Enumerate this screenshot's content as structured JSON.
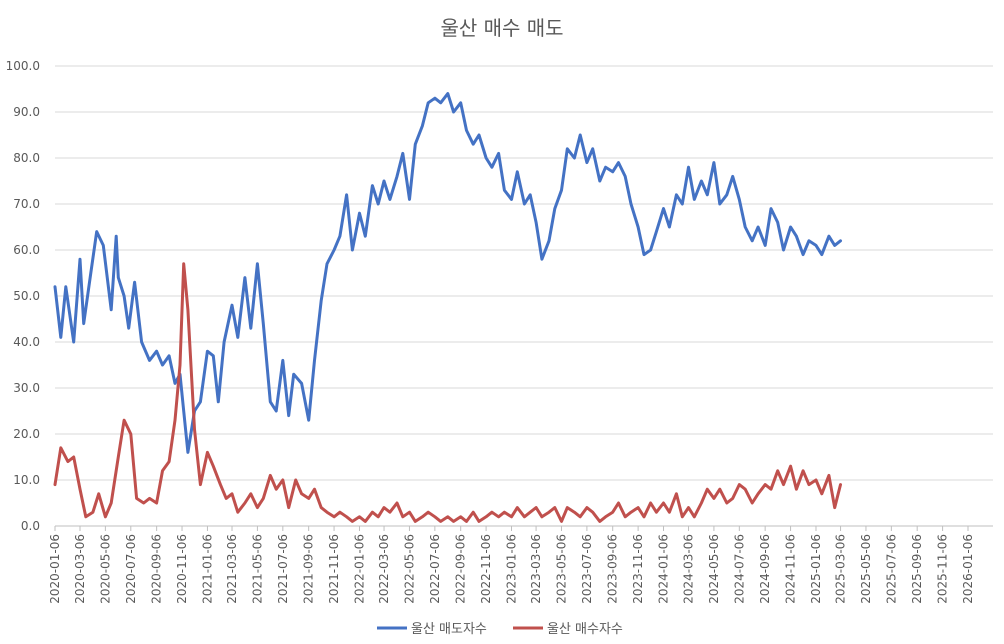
{
  "chart_data": {
    "type": "line",
    "title": "울산 매수 매도",
    "xlabel": "",
    "ylabel": "",
    "ylim": [
      0,
      100
    ],
    "y_ticks": [
      "0.0",
      "10.0",
      "20.0",
      "30.0",
      "40.0",
      "50.0",
      "60.0",
      "70.0",
      "80.0",
      "90.0",
      "100.0"
    ],
    "x_ticks": [
      "2020-01-06",
      "2020-03-06",
      "2020-05-06",
      "2020-07-06",
      "2020-09-06",
      "2020-11-06",
      "2021-01-06",
      "2021-03-06",
      "2021-05-06",
      "2021-07-06",
      "2021-09-06",
      "2021-11-06",
      "2022-01-06",
      "2022-03-06",
      "2022-05-06",
      "2022-07-06",
      "2022-09-06",
      "2022-11-06",
      "2023-01-06",
      "2023-03-06",
      "2023-05-06",
      "2023-07-06",
      "2023-09-06",
      "2023-11-06",
      "2024-01-06",
      "2024-03-06",
      "2024-05-06",
      "2024-07-06",
      "2024-09-06",
      "2024-11-06",
      "2025-01-06",
      "2025-03-06",
      "2025-05-06",
      "2025-07-06",
      "2025-09-06",
      "2025-11-06",
      "2026-01-06"
    ],
    "legend_position": "bottom",
    "grid": true,
    "series": [
      {
        "name": "울산 매도자수",
        "color": "#4472C4",
        "points": [
          [
            "2020-01-06",
            52
          ],
          [
            "2020-01-20",
            41
          ],
          [
            "2020-02-01",
            52
          ],
          [
            "2020-02-20",
            40
          ],
          [
            "2020-03-06",
            58
          ],
          [
            "2020-03-15",
            44
          ],
          [
            "2020-04-01",
            55
          ],
          [
            "2020-04-15",
            64
          ],
          [
            "2020-05-01",
            61
          ],
          [
            "2020-05-20",
            47
          ],
          [
            "2020-06-01",
            63
          ],
          [
            "2020-06-06",
            54
          ],
          [
            "2020-06-20",
            50
          ],
          [
            "2020-07-01",
            43
          ],
          [
            "2020-07-15",
            53
          ],
          [
            "2020-08-01",
            40
          ],
          [
            "2020-08-20",
            36
          ],
          [
            "2020-09-06",
            38
          ],
          [
            "2020-09-20",
            35
          ],
          [
            "2020-10-06",
            37
          ],
          [
            "2020-10-20",
            31
          ],
          [
            "2020-11-01",
            33
          ],
          [
            "2020-11-10",
            25
          ],
          [
            "2020-11-20",
            16
          ],
          [
            "2020-12-06",
            25
          ],
          [
            "2020-12-20",
            27
          ],
          [
            "2021-01-06",
            38
          ],
          [
            "2021-01-20",
            37
          ],
          [
            "2021-02-01",
            27
          ],
          [
            "2021-02-15",
            40
          ],
          [
            "2021-03-06",
            48
          ],
          [
            "2021-03-20",
            41
          ],
          [
            "2021-04-06",
            54
          ],
          [
            "2021-04-20",
            43
          ],
          [
            "2021-05-06",
            57
          ],
          [
            "2021-05-20",
            44
          ],
          [
            "2021-06-06",
            27
          ],
          [
            "2021-06-20",
            25
          ],
          [
            "2021-07-06",
            36
          ],
          [
            "2021-07-20",
            24
          ],
          [
            "2021-08-01",
            33
          ],
          [
            "2021-08-20",
            31
          ],
          [
            "2021-09-06",
            23
          ],
          [
            "2021-09-20",
            36
          ],
          [
            "2021-10-06",
            49
          ],
          [
            "2021-10-20",
            57
          ],
          [
            "2021-11-06",
            60
          ],
          [
            "2021-11-20",
            63
          ],
          [
            "2021-12-06",
            72
          ],
          [
            "2021-12-20",
            60
          ],
          [
            "2022-01-06",
            68
          ],
          [
            "2022-01-20",
            63
          ],
          [
            "2022-02-06",
            74
          ],
          [
            "2022-02-20",
            70
          ],
          [
            "2022-03-06",
            75
          ],
          [
            "2022-03-20",
            71
          ],
          [
            "2022-04-06",
            76
          ],
          [
            "2022-04-20",
            81
          ],
          [
            "2022-05-06",
            71
          ],
          [
            "2022-05-20",
            83
          ],
          [
            "2022-06-06",
            87
          ],
          [
            "2022-06-20",
            92
          ],
          [
            "2022-07-06",
            93
          ],
          [
            "2022-07-20",
            92
          ],
          [
            "2022-08-06",
            94
          ],
          [
            "2022-08-20",
            90
          ],
          [
            "2022-09-06",
            92
          ],
          [
            "2022-09-20",
            86
          ],
          [
            "2022-10-06",
            83
          ],
          [
            "2022-10-20",
            85
          ],
          [
            "2022-11-06",
            80
          ],
          [
            "2022-11-20",
            78
          ],
          [
            "2022-12-06",
            81
          ],
          [
            "2022-12-20",
            73
          ],
          [
            "2023-01-06",
            71
          ],
          [
            "2023-01-20",
            77
          ],
          [
            "2023-02-06",
            70
          ],
          [
            "2023-02-20",
            72
          ],
          [
            "2023-03-06",
            66
          ],
          [
            "2023-03-20",
            58
          ],
          [
            "2023-04-06",
            62
          ],
          [
            "2023-04-20",
            69
          ],
          [
            "2023-05-06",
            73
          ],
          [
            "2023-05-20",
            82
          ],
          [
            "2023-06-06",
            80
          ],
          [
            "2023-06-20",
            85
          ],
          [
            "2023-07-06",
            79
          ],
          [
            "2023-07-20",
            82
          ],
          [
            "2023-08-06",
            75
          ],
          [
            "2023-08-20",
            78
          ],
          [
            "2023-09-06",
            77
          ],
          [
            "2023-09-20",
            79
          ],
          [
            "2023-10-06",
            76
          ],
          [
            "2023-10-20",
            70
          ],
          [
            "2023-11-06",
            65
          ],
          [
            "2023-11-20",
            59
          ],
          [
            "2023-12-06",
            60
          ],
          [
            "2023-12-20",
            64
          ],
          [
            "2024-01-06",
            69
          ],
          [
            "2024-01-20",
            65
          ],
          [
            "2024-02-06",
            72
          ],
          [
            "2024-02-20",
            70
          ],
          [
            "2024-03-06",
            78
          ],
          [
            "2024-03-20",
            71
          ],
          [
            "2024-04-06",
            75
          ],
          [
            "2024-04-20",
            72
          ],
          [
            "2024-05-06",
            79
          ],
          [
            "2024-05-20",
            70
          ],
          [
            "2024-06-06",
            72
          ],
          [
            "2024-06-20",
            76
          ],
          [
            "2024-07-06",
            71
          ],
          [
            "2024-07-20",
            65
          ],
          [
            "2024-08-06",
            62
          ],
          [
            "2024-08-20",
            65
          ],
          [
            "2024-09-06",
            61
          ],
          [
            "2024-09-20",
            69
          ],
          [
            "2024-10-06",
            66
          ],
          [
            "2024-10-20",
            60
          ],
          [
            "2024-11-06",
            65
          ],
          [
            "2024-11-20",
            63
          ],
          [
            "2024-12-06",
            59
          ],
          [
            "2024-12-20",
            62
          ],
          [
            "2025-01-06",
            61
          ],
          [
            "2025-01-20",
            59
          ],
          [
            "2025-02-06",
            63
          ],
          [
            "2025-02-20",
            61
          ],
          [
            "2025-03-06",
            62
          ]
        ]
      },
      {
        "name": "울산 매수자수",
        "color": "#C0504D",
        "points": [
          [
            "2020-01-06",
            9
          ],
          [
            "2020-01-20",
            17
          ],
          [
            "2020-02-06",
            14
          ],
          [
            "2020-02-20",
            15
          ],
          [
            "2020-03-06",
            8
          ],
          [
            "2020-03-20",
            2
          ],
          [
            "2020-04-06",
            3
          ],
          [
            "2020-04-20",
            7
          ],
          [
            "2020-05-06",
            2
          ],
          [
            "2020-05-20",
            5
          ],
          [
            "2020-06-06",
            15
          ],
          [
            "2020-06-20",
            23
          ],
          [
            "2020-07-06",
            20
          ],
          [
            "2020-07-20",
            6
          ],
          [
            "2020-08-06",
            5
          ],
          [
            "2020-08-20",
            6
          ],
          [
            "2020-09-06",
            5
          ],
          [
            "2020-09-20",
            12
          ],
          [
            "2020-10-06",
            14
          ],
          [
            "2020-10-20",
            23
          ],
          [
            "2020-11-01",
            35
          ],
          [
            "2020-11-10",
            57
          ],
          [
            "2020-11-20",
            47
          ],
          [
            "2020-12-06",
            21
          ],
          [
            "2020-12-20",
            9
          ],
          [
            "2021-01-06",
            16
          ],
          [
            "2021-01-20",
            13
          ],
          [
            "2021-02-06",
            9
          ],
          [
            "2021-02-20",
            6
          ],
          [
            "2021-03-06",
            7
          ],
          [
            "2021-03-20",
            3
          ],
          [
            "2021-04-06",
            5
          ],
          [
            "2021-04-20",
            7
          ],
          [
            "2021-05-06",
            4
          ],
          [
            "2021-05-20",
            6
          ],
          [
            "2021-06-06",
            11
          ],
          [
            "2021-06-20",
            8
          ],
          [
            "2021-07-06",
            10
          ],
          [
            "2021-07-20",
            4
          ],
          [
            "2021-08-06",
            10
          ],
          [
            "2021-08-20",
            7
          ],
          [
            "2021-09-06",
            6
          ],
          [
            "2021-09-20",
            8
          ],
          [
            "2021-10-06",
            4
          ],
          [
            "2021-10-20",
            3
          ],
          [
            "2021-11-06",
            2
          ],
          [
            "2021-11-20",
            3
          ],
          [
            "2021-12-06",
            2
          ],
          [
            "2021-12-20",
            1
          ],
          [
            "2022-01-06",
            2
          ],
          [
            "2022-01-20",
            1
          ],
          [
            "2022-02-06",
            3
          ],
          [
            "2022-02-20",
            2
          ],
          [
            "2022-03-06",
            4
          ],
          [
            "2022-03-20",
            3
          ],
          [
            "2022-04-06",
            5
          ],
          [
            "2022-04-20",
            2
          ],
          [
            "2022-05-06",
            3
          ],
          [
            "2022-05-20",
            1
          ],
          [
            "2022-06-06",
            2
          ],
          [
            "2022-06-20",
            3
          ],
          [
            "2022-07-06",
            2
          ],
          [
            "2022-07-20",
            1
          ],
          [
            "2022-08-06",
            2
          ],
          [
            "2022-08-20",
            1
          ],
          [
            "2022-09-06",
            2
          ],
          [
            "2022-09-20",
            1
          ],
          [
            "2022-10-06",
            3
          ],
          [
            "2022-10-20",
            1
          ],
          [
            "2022-11-06",
            2
          ],
          [
            "2022-11-20",
            3
          ],
          [
            "2022-12-06",
            2
          ],
          [
            "2022-12-20",
            3
          ],
          [
            "2023-01-06",
            2
          ],
          [
            "2023-01-20",
            4
          ],
          [
            "2023-02-06",
            2
          ],
          [
            "2023-02-20",
            3
          ],
          [
            "2023-03-06",
            4
          ],
          [
            "2023-03-20",
            2
          ],
          [
            "2023-04-06",
            3
          ],
          [
            "2023-04-20",
            4
          ],
          [
            "2023-05-06",
            1
          ],
          [
            "2023-05-20",
            4
          ],
          [
            "2023-06-06",
            3
          ],
          [
            "2023-06-20",
            2
          ],
          [
            "2023-07-06",
            4
          ],
          [
            "2023-07-20",
            3
          ],
          [
            "2023-08-06",
            1
          ],
          [
            "2023-08-20",
            2
          ],
          [
            "2023-09-06",
            3
          ],
          [
            "2023-09-20",
            5
          ],
          [
            "2023-10-06",
            2
          ],
          [
            "2023-10-20",
            3
          ],
          [
            "2023-11-06",
            4
          ],
          [
            "2023-11-20",
            2
          ],
          [
            "2023-12-06",
            5
          ],
          [
            "2023-12-20",
            3
          ],
          [
            "2024-01-06",
            5
          ],
          [
            "2024-01-20",
            3
          ],
          [
            "2024-02-06",
            7
          ],
          [
            "2024-02-20",
            2
          ],
          [
            "2024-03-06",
            4
          ],
          [
            "2024-03-20",
            2
          ],
          [
            "2024-04-06",
            5
          ],
          [
            "2024-04-20",
            8
          ],
          [
            "2024-05-06",
            6
          ],
          [
            "2024-05-20",
            8
          ],
          [
            "2024-06-06",
            5
          ],
          [
            "2024-06-20",
            6
          ],
          [
            "2024-07-06",
            9
          ],
          [
            "2024-07-20",
            8
          ],
          [
            "2024-08-06",
            5
          ],
          [
            "2024-08-20",
            7
          ],
          [
            "2024-09-06",
            9
          ],
          [
            "2024-09-20",
            8
          ],
          [
            "2024-10-06",
            12
          ],
          [
            "2024-10-20",
            9
          ],
          [
            "2024-11-06",
            13
          ],
          [
            "2024-11-20",
            8
          ],
          [
            "2024-12-06",
            12
          ],
          [
            "2024-12-20",
            9
          ],
          [
            "2025-01-06",
            10
          ],
          [
            "2025-01-20",
            7
          ],
          [
            "2025-02-06",
            11
          ],
          [
            "2025-02-20",
            4
          ],
          [
            "2025-03-06",
            9
          ]
        ]
      }
    ]
  }
}
